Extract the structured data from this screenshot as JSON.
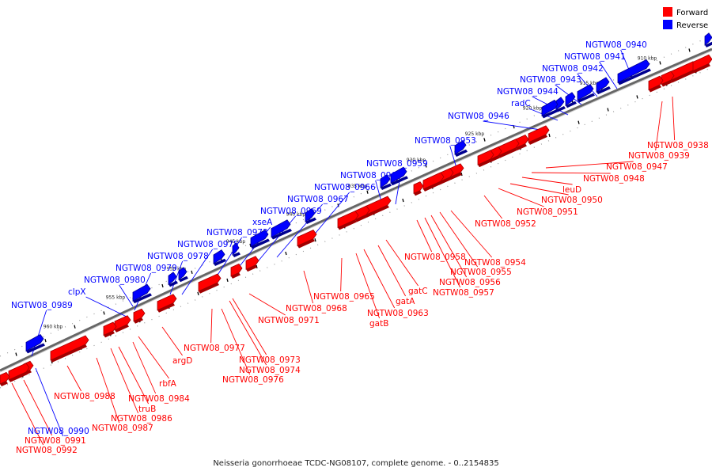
{
  "legend": {
    "forward": {
      "label": "Forward",
      "color": "#ff0000"
    },
    "reverse": {
      "label": "Reverse",
      "color": "#0000ff"
    }
  },
  "caption": "Neisseria gonorrhoeae TCDC-NG08107, complete genome. - 0..2154835",
  "colors": {
    "forward": "#ff0000",
    "forward_dark": "#a00000",
    "reverse": "#0000ff",
    "reverse_dark": "#000090",
    "backbone": "#888888",
    "dots": "#999999"
  },
  "ticks": [
    "910 kbp",
    "915 kbp",
    "920 kbp",
    "925 kbp",
    "930 kbp",
    "935 kbp",
    "940 kbp",
    "945 kbp",
    "950 kbp",
    "955 kbp",
    "960 kbp"
  ],
  "reverse_genes": [
    "NGTW08_0940",
    "NGTW08_0941",
    "NGTW08_0942",
    "NGTW08_0943",
    "NGTW08_0944",
    "radC",
    "NGTW08_0946",
    "NGTW08_0953",
    "NGTW08_0959",
    "NGTW08_0960",
    "NGTW08_0966",
    "NGTW08_0967",
    "NGTW08_0969",
    "xseA",
    "NGTW08_0972",
    "NGTW08_0975",
    "NGTW08_0978",
    "NGTW08_0979",
    "NGTW08_0980",
    "clpX",
    "NGTW08_0989",
    "NGTW08_0990"
  ],
  "forward_genes": [
    "NGTW08_0938",
    "NGTW08_0939",
    "NGTW08_0947",
    "NGTW08_0948",
    "leuD",
    "NGTW08_0950",
    "NGTW08_0951",
    "NGTW08_0952",
    "NGTW08_0954",
    "NGTW08_0955",
    "NGTW08_0956",
    "NGTW08_0957",
    "NGTW08_0958",
    "gatC",
    "gatA",
    "NGTW08_0963",
    "gatB",
    "NGTW08_0965",
    "NGTW08_0968",
    "NGTW08_0971",
    "NGTW08_0973",
    "NGTW08_0974",
    "NGTW08_0976",
    "NGTW08_0977",
    "argD",
    "rbfA",
    "NGTW08_0984",
    "truB",
    "NGTW08_0986",
    "NGTW08_0987",
    "NGTW08_0988",
    "NGTW08_0991",
    "NGTW08_0992"
  ]
}
